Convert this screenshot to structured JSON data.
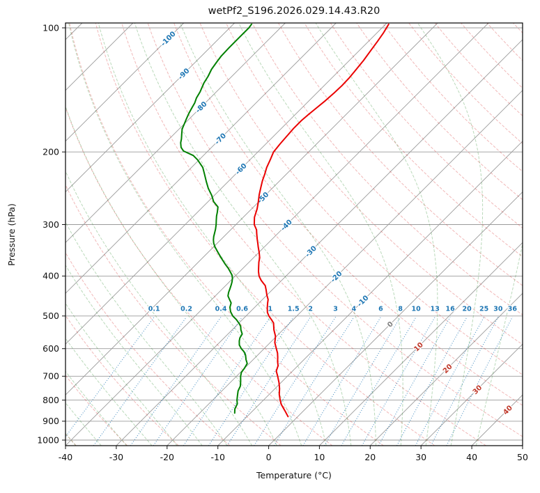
{
  "figure": {
    "title": "wetPf2_S196.2026.029.14.43.R20"
  },
  "chart_data": {
    "type": "skewt-log-p",
    "title": "wetPf2_S196.2026.029.14.43.R20",
    "xlabel": "Temperature (°C)",
    "ylabel": "Pressure (hPa)",
    "xlim": [
      -40,
      50
    ],
    "x_ticks": [
      -40,
      -30,
      -20,
      -10,
      0,
      10,
      20,
      30,
      40,
      50
    ],
    "y_ticks": [
      100,
      200,
      300,
      400,
      500,
      600,
      700,
      800,
      900,
      1000
    ],
    "pressure_top_hpa": 97.3,
    "pressure_bottom_hpa": 1031.6,
    "skew_angle_deg": 45,
    "grid": true,
    "isotherms": {
      "min": -150,
      "max": 50,
      "step": 10,
      "labeled_min": -100,
      "labeled_max": 40,
      "label_step": 10,
      "label_colors": {
        "negative": "#1f77b4",
        "zero": "#808080",
        "positive": "#c0392b"
      }
    },
    "isotherm_label_theta_k": 328.6,
    "dry_adiabats_theta_c": {
      "min": -40,
      "max": 190,
      "step": 10
    },
    "moist_adiabats_t0_c": {
      "min": -40,
      "max": 40,
      "step": 5
    },
    "mixing_ratio_lines_g_kg": [
      0.1,
      0.2,
      0.4,
      0.6,
      1,
      1.5,
      2,
      3,
      4,
      6,
      8,
      10,
      13,
      16,
      20,
      25,
      30,
      36
    ],
    "mixing_ratio_top_hpa": 503,
    "series": [
      {
        "name": "temperature",
        "color": "#ea0000",
        "pressure_hpa": [
          877,
          850,
          820,
          800,
          775,
          750,
          725,
          700,
          680,
          660,
          645,
          630,
          615,
          600,
          580,
          560,
          540,
          520,
          510,
          500,
          490,
          478,
          465,
          456,
          445,
          432,
          422,
          410,
          400,
          390,
          380,
          370,
          361,
          350,
          340,
          334,
          325,
          315,
          309,
          300,
          288,
          275,
          264,
          254,
          244,
          235,
          226,
          218,
          209,
          200,
          191,
          183,
          175,
          168,
          162,
          156,
          150,
          144,
          138,
          132,
          126,
          120,
          114,
          108,
          103,
          98
        ],
        "value_c": [
          -1.9,
          -3.6,
          -5.6,
          -6.7,
          -8.0,
          -9.1,
          -10.4,
          -11.9,
          -13.2,
          -13.9,
          -14.8,
          -15.6,
          -16.5,
          -17.6,
          -19.1,
          -20.2,
          -21.8,
          -23.2,
          -24.3,
          -25.5,
          -26.5,
          -27.4,
          -28.3,
          -28.9,
          -30.0,
          -31.2,
          -32.2,
          -34.0,
          -35.3,
          -36.3,
          -37.2,
          -38.1,
          -38.8,
          -40.0,
          -41.2,
          -41.9,
          -43.0,
          -44.2,
          -44.9,
          -46.4,
          -47.8,
          -48.9,
          -50.1,
          -51.3,
          -52.4,
          -53.4,
          -54.3,
          -55.2,
          -56.0,
          -56.9,
          -57.2,
          -57.4,
          -57.6,
          -57.6,
          -57.4,
          -57.1,
          -56.8,
          -56.6,
          -56.5,
          -56.6,
          -56.9,
          -57.2,
          -57.7,
          -58.2,
          -58.7,
          -59.4
        ]
      },
      {
        "name": "dewpoint",
        "color": "#008000",
        "pressure_hpa": [
          860,
          840,
          817,
          800,
          780,
          760,
          740,
          720,
          700,
          685,
          670,
          652,
          638,
          622,
          610,
          600,
          588,
          575,
          565,
          553,
          540,
          530,
          522,
          510,
          500,
          488,
          476,
          465,
          456,
          447,
          438,
          430,
          421,
          413,
          405,
          398,
          390,
          383,
          375,
          368,
          361,
          354,
          347,
          340,
          333,
          327,
          321,
          315,
          308,
          300,
          293,
          286,
          280,
          272,
          264,
          255,
          245,
          236,
          226,
          218,
          209,
          204,
          199,
          195,
          190,
          186,
          181,
          176,
          171,
          166,
          161,
          156,
          152,
          148,
          143,
          136,
          131,
          126,
          121,
          117,
          112,
          108,
          104,
          100,
          98
        ],
        "value_c": [
          -13.1,
          -13.9,
          -14.4,
          -15.2,
          -16.0,
          -16.8,
          -17.3,
          -18.2,
          -19.2,
          -19.8,
          -20.0,
          -20.4,
          -21.4,
          -22.4,
          -23.4,
          -24.5,
          -25.6,
          -26.4,
          -26.9,
          -27.2,
          -28.3,
          -29.0,
          -29.8,
          -31.2,
          -32.6,
          -33.9,
          -34.9,
          -35.5,
          -36.5,
          -37.5,
          -38.1,
          -38.5,
          -39.0,
          -39.5,
          -40.1,
          -40.8,
          -41.9,
          -42.9,
          -44.2,
          -45.3,
          -46.4,
          -47.5,
          -48.6,
          -49.7,
          -50.7,
          -51.4,
          -52.0,
          -52.5,
          -53.1,
          -53.9,
          -54.7,
          -55.5,
          -56.1,
          -57.0,
          -58.9,
          -60.5,
          -62.6,
          -64.3,
          -66.2,
          -67.8,
          -70.3,
          -72.0,
          -74.8,
          -76.0,
          -77.0,
          -77.6,
          -78.5,
          -79.4,
          -80.0,
          -80.6,
          -81.2,
          -81.7,
          -82.1,
          -82.7,
          -83.2,
          -84.2,
          -84.7,
          -85.4,
          -85.8,
          -86.1,
          -86.2,
          -86.2,
          -86.2,
          -86.2,
          -86.4
        ]
      }
    ],
    "colors": {
      "isotherm": "#9b9b9b",
      "pressure_grid": "#9b9b9b",
      "dry_adiabat": "#d62728",
      "moist_adiabat": "#2e8b2e",
      "mixing_ratio": "#1f77b4",
      "border": "#000000",
      "text": "#111111"
    }
  }
}
